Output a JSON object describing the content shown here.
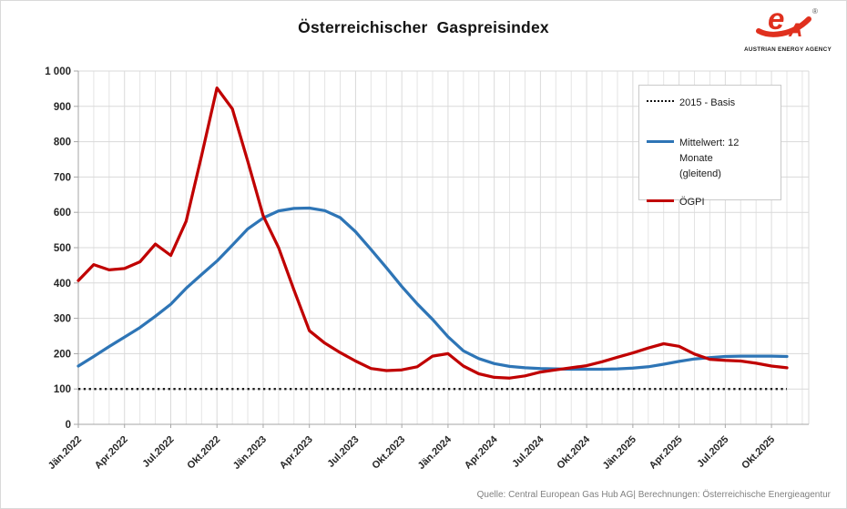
{
  "title": "Österreichischer  Gaspreisindex",
  "logo": {
    "mark": "e",
    "mark_a": "A",
    "registered": "®",
    "caption": "AUSTRIAN ENERGY AGENCY",
    "brand_color": "#E0301E"
  },
  "legend": {
    "basis_label": "2015 - Basis",
    "mittelwert_line1": "Mittelwert: 12 Monate",
    "mittelwert_line2": "(gleitend)",
    "oegpi_label": "ÖGPI"
  },
  "footer_text": "Quelle: Central European Gas Hub AG| Berechnungen: Österreichische Energieagentur",
  "colors": {
    "red": "#C00000",
    "blue": "#2E75B6",
    "basis": "#1A1A1A",
    "grid_h": "#D9D9D9",
    "grid_v_minor": "#E4E4E4",
    "grid_v_major": "#DADADA",
    "axis": "#A6A6A6",
    "tick_label": "#262626"
  },
  "chart_data": {
    "type": "line",
    "title": "Österreichischer Gaspreisindex",
    "x_unit": "month",
    "x_start": "Jän.2022",
    "x_end": "Nov.2025",
    "ylim": [
      0,
      1000
    ],
    "grid": true,
    "legend_position": "inside-top-right",
    "y_tick_labels": [
      "0",
      "100",
      "200",
      "300",
      "400",
      "500",
      "600",
      "700",
      "800",
      "900",
      "1 000"
    ],
    "x_tick_labels": [
      "Jän.2022",
      "Apr.2022",
      "Jul.2022",
      "Okt.2022",
      "Jän.2023",
      "Apr.2023",
      "Jul.2023",
      "Okt.2023",
      "Jän.2024",
      "Apr.2024",
      "Jul.2024",
      "Okt.2024",
      "Jän.2025",
      "Apr.2025",
      "Jul.2025",
      "Okt.2025"
    ],
    "x_tick_every_n_months": 3,
    "series": [
      {
        "key": "basis",
        "name": "2015 - Basis",
        "style": "dotted",
        "color": "#1A1A1A",
        "values": [
          100,
          100,
          100,
          100,
          100,
          100,
          100,
          100,
          100,
          100,
          100,
          100,
          100,
          100,
          100,
          100,
          100,
          100,
          100,
          100,
          100,
          100,
          100,
          100,
          100,
          100,
          100,
          100,
          100,
          100,
          100,
          100,
          100,
          100,
          100,
          100,
          100,
          100,
          100,
          100,
          100,
          100,
          100,
          100,
          100,
          100,
          100
        ]
      },
      {
        "key": "mittelwert",
        "name": "Mittelwert: 12 Monate (gleitend)",
        "style": "solid",
        "color": "#2E75B6",
        "values": [
          165,
          192,
          220,
          247,
          274,
          306,
          340,
          385,
          424,
          462,
          507,
          553,
          584,
          604,
          611,
          612,
          605,
          585,
          545,
          495,
          443,
          390,
          341,
          297,
          248,
          208,
          186,
          172,
          164,
          160,
          158,
          157,
          156,
          156,
          156,
          157,
          159,
          163,
          170,
          178,
          185,
          189,
          192,
          193,
          193,
          193,
          192
        ]
      },
      {
        "key": "oegpi",
        "name": "ÖGPI",
        "style": "solid",
        "color": "#C00000",
        "values": [
          407,
          452,
          437,
          441,
          460,
          510,
          478,
          575,
          760,
          952,
          893,
          745,
          590,
          500,
          380,
          265,
          230,
          203,
          179,
          158,
          152,
          154,
          163,
          193,
          200,
          165,
          143,
          133,
          131,
          137,
          148,
          154,
          160,
          166,
          177,
          190,
          202,
          216,
          228,
          221,
          199,
          184,
          181,
          179,
          173,
          165,
          160
        ]
      }
    ]
  }
}
